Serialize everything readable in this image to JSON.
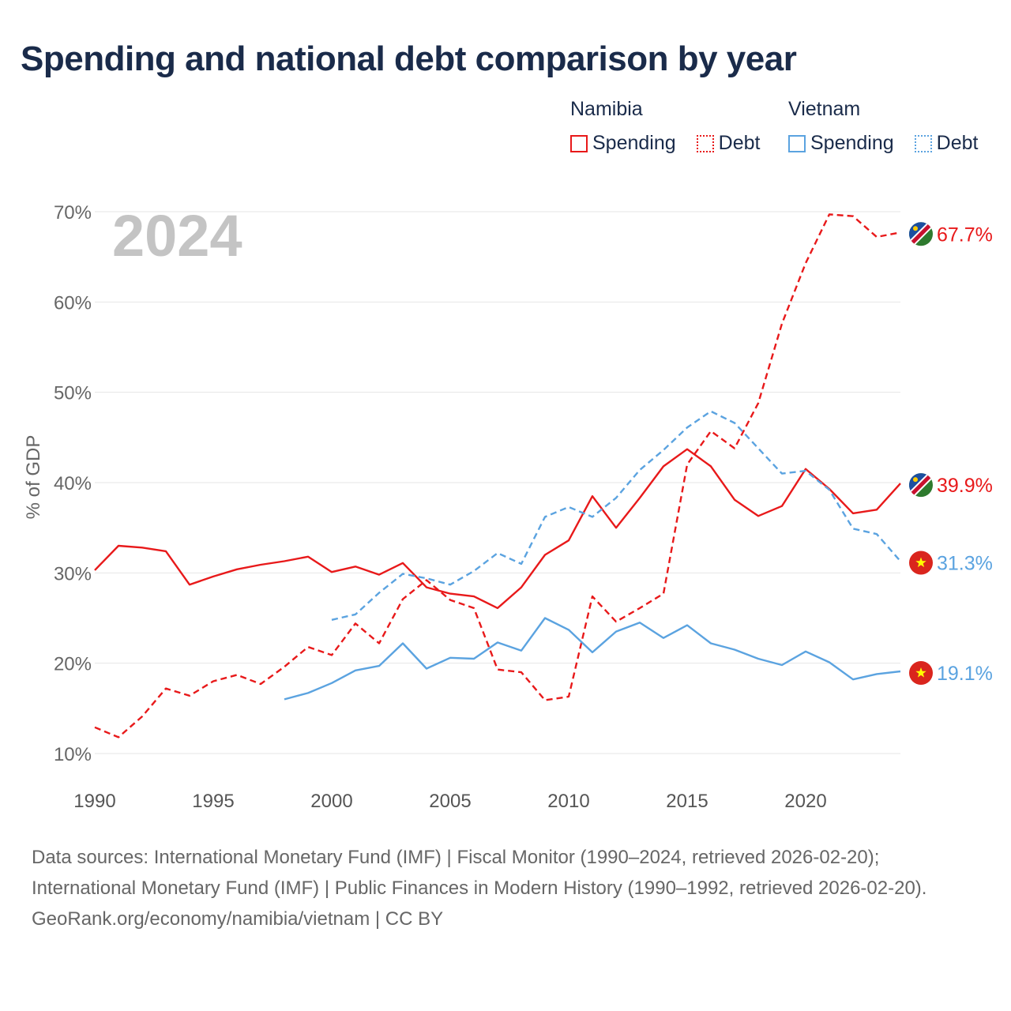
{
  "title": "Spending and national debt comparison by year",
  "legend": {
    "namibia": {
      "country": "Namibia",
      "spending": "Spending",
      "debt": "Debt",
      "color": "#e8191a"
    },
    "vietnam": {
      "country": "Vietnam",
      "spending": "Spending",
      "debt": "Debt",
      "color": "#5ba3e0"
    }
  },
  "chart_data": {
    "type": "line",
    "big_year": "2024",
    "ylabel": "% of GDP",
    "xlabel": "",
    "xlim": [
      1990,
      2024
    ],
    "ylim": [
      10,
      70
    ],
    "x_ticks": [
      1990,
      1995,
      2000,
      2005,
      2010,
      2015,
      2020
    ],
    "x_tick_labels": [
      "1990",
      "1995",
      "2000",
      "2005",
      "2010",
      "2015",
      "2020"
    ],
    "y_ticks": [
      10,
      20,
      30,
      40,
      50,
      60,
      70
    ],
    "y_tick_labels": [
      "10%",
      "20%",
      "30%",
      "40%",
      "50%",
      "60%",
      "70%"
    ],
    "series": [
      {
        "name": "Namibia Spending",
        "color": "#e8191a",
        "dash": false,
        "end_label": "39.9%",
        "x": [
          1990,
          1991,
          1992,
          1993,
          1994,
          1995,
          1996,
          1997,
          1998,
          1999,
          2000,
          2001,
          2002,
          2003,
          2004,
          2005,
          2006,
          2007,
          2008,
          2009,
          2010,
          2011,
          2012,
          2013,
          2014,
          2015,
          2016,
          2017,
          2018,
          2019,
          2020,
          2021,
          2022,
          2023,
          2024
        ],
        "y": [
          30.3,
          33.0,
          32.8,
          32.4,
          28.7,
          29.6,
          30.4,
          30.9,
          31.3,
          31.8,
          30.1,
          30.7,
          29.8,
          31.1,
          28.4,
          27.7,
          27.4,
          26.1,
          28.4,
          32.0,
          33.6,
          38.5,
          35.0,
          38.3,
          41.8,
          43.7,
          41.8,
          38.1,
          36.3,
          37.4,
          41.5,
          39.3,
          36.6,
          37.0,
          39.9
        ]
      },
      {
        "name": "Namibia Debt",
        "color": "#e8191a",
        "dash": true,
        "end_label": "67.7%",
        "x": [
          1990,
          1991,
          1992,
          1993,
          1994,
          1995,
          1996,
          1997,
          1998,
          1999,
          2000,
          2001,
          2002,
          2003,
          2004,
          2005,
          2006,
          2007,
          2008,
          2009,
          2010,
          2011,
          2012,
          2013,
          2014,
          2015,
          2016,
          2017,
          2018,
          2019,
          2020,
          2021,
          2022,
          2023,
          2024
        ],
        "y": [
          12.9,
          11.8,
          14.1,
          17.2,
          16.4,
          18.0,
          18.7,
          17.7,
          19.6,
          21.8,
          20.9,
          24.4,
          22.2,
          27.1,
          29.2,
          27.0,
          26.1,
          19.3,
          19.0,
          15.9,
          16.3,
          27.4,
          24.6,
          26.1,
          27.7,
          42.0,
          45.7,
          43.8,
          48.8,
          57.6,
          64.3,
          69.7,
          69.5,
          67.2,
          67.7
        ]
      },
      {
        "name": "Vietnam Spending",
        "color": "#5ba3e0",
        "dash": false,
        "end_label": "19.1%",
        "x": [
          1998,
          1999,
          2000,
          2001,
          2002,
          2003,
          2004,
          2005,
          2006,
          2007,
          2008,
          2009,
          2010,
          2011,
          2012,
          2013,
          2014,
          2015,
          2016,
          2017,
          2018,
          2019,
          2020,
          2021,
          2022,
          2023,
          2024
        ],
        "y": [
          16.0,
          16.7,
          17.8,
          19.2,
          19.7,
          22.2,
          19.4,
          20.6,
          20.5,
          22.3,
          21.4,
          25.0,
          23.7,
          21.2,
          23.5,
          24.5,
          22.8,
          24.2,
          22.2,
          21.5,
          20.5,
          19.8,
          21.3,
          20.1,
          18.2,
          18.8,
          19.1
        ]
      },
      {
        "name": "Vietnam Debt",
        "color": "#5ba3e0",
        "dash": true,
        "end_label": "31.3%",
        "x": [
          2000,
          2001,
          2002,
          2003,
          2004,
          2005,
          2006,
          2007,
          2008,
          2009,
          2010,
          2011,
          2012,
          2013,
          2014,
          2015,
          2016,
          2017,
          2018,
          2019,
          2020,
          2021,
          2022,
          2023,
          2024
        ],
        "y": [
          24.8,
          25.4,
          27.8,
          29.9,
          29.4,
          28.7,
          30.2,
          32.2,
          31.0,
          36.2,
          37.3,
          36.2,
          38.3,
          41.4,
          43.6,
          46.1,
          47.9,
          46.6,
          43.8,
          41.0,
          41.3,
          39.2,
          34.9,
          34.3,
          31.3
        ]
      }
    ]
  },
  "footer": {
    "sources": "Data sources: International Monetary Fund (IMF) | Fiscal Monitor (1990–2024, retrieved 2026-02-20); International Monetary Fund (IMF) | Public Finances in Modern History (1990–1992, retrieved 2026-02-20).",
    "credit": "GeoRank.org/economy/namibia/vietnam | CC BY"
  }
}
